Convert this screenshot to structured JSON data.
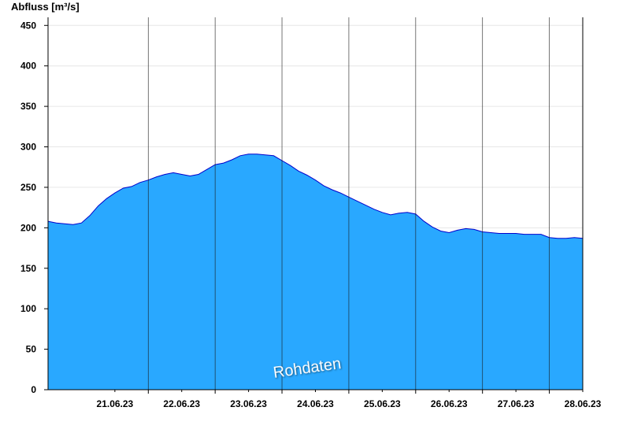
{
  "chart_data": {
    "type": "area",
    "ylabel": "Abfluss [m³/s]",
    "ylim": [
      0,
      460
    ],
    "yticks": [
      0,
      50,
      100,
      150,
      200,
      250,
      300,
      350,
      400,
      450
    ],
    "x_tick_labels": [
      "21.06.23",
      "22.06.23",
      "23.06.23",
      "24.06.23",
      "25.06.23",
      "26.06.23",
      "27.06.23",
      "28.06.23"
    ],
    "x_range": [
      "2023-06-20T12:00",
      "2023-06-28T12:00"
    ],
    "grid": true,
    "fill_color": "#29a8ff",
    "line_color": "#0000cc",
    "annotation": "Rohdaten",
    "series": [
      {
        "x": [
          "2023-06-20T12:00",
          "2023-06-20T15:00",
          "2023-06-20T18:00",
          "2023-06-20T21:00",
          "2023-06-21T00:00",
          "2023-06-21T03:00",
          "2023-06-21T06:00",
          "2023-06-21T09:00",
          "2023-06-21T12:00",
          "2023-06-21T15:00",
          "2023-06-21T18:00",
          "2023-06-21T21:00",
          "2023-06-22T00:00",
          "2023-06-22T03:00",
          "2023-06-22T06:00",
          "2023-06-22T09:00",
          "2023-06-22T12:00",
          "2023-06-22T15:00",
          "2023-06-22T18:00",
          "2023-06-22T21:00",
          "2023-06-23T00:00",
          "2023-06-23T03:00",
          "2023-06-23T06:00",
          "2023-06-23T09:00",
          "2023-06-23T12:00",
          "2023-06-23T15:00",
          "2023-06-23T18:00",
          "2023-06-23T21:00",
          "2023-06-24T00:00",
          "2023-06-24T03:00",
          "2023-06-24T06:00",
          "2023-06-24T09:00",
          "2023-06-24T12:00",
          "2023-06-24T15:00",
          "2023-06-24T18:00",
          "2023-06-24T21:00",
          "2023-06-25T00:00",
          "2023-06-25T03:00",
          "2023-06-25T06:00",
          "2023-06-25T09:00",
          "2023-06-25T12:00",
          "2023-06-25T15:00",
          "2023-06-25T18:00",
          "2023-06-25T21:00",
          "2023-06-26T00:00",
          "2023-06-26T03:00",
          "2023-06-26T06:00",
          "2023-06-26T09:00",
          "2023-06-26T12:00",
          "2023-06-26T15:00",
          "2023-06-26T18:00",
          "2023-06-26T21:00",
          "2023-06-27T00:00",
          "2023-06-27T03:00",
          "2023-06-27T06:00",
          "2023-06-27T09:00",
          "2023-06-27T12:00",
          "2023-06-27T15:00",
          "2023-06-27T18:00",
          "2023-06-27T21:00",
          "2023-06-28T00:00",
          "2023-06-28T03:00",
          "2023-06-28T06:00",
          "2023-06-28T09:00",
          "2023-06-28T12:00"
        ],
        "y": [
          208,
          206,
          205,
          204,
          206,
          215,
          227,
          236,
          243,
          249,
          251,
          256,
          259,
          263,
          266,
          268,
          266,
          264,
          266,
          272,
          278,
          280,
          284,
          289,
          291,
          291,
          290,
          289,
          283,
          277,
          270,
          265,
          259,
          252,
          247,
          243,
          238,
          233,
          228,
          223,
          219,
          216,
          218,
          219,
          217,
          208,
          201,
          196,
          194,
          197,
          199,
          198,
          195,
          194,
          193,
          193,
          193,
          192,
          192,
          192,
          188,
          187,
          187,
          188,
          187
        ]
      }
    ]
  }
}
